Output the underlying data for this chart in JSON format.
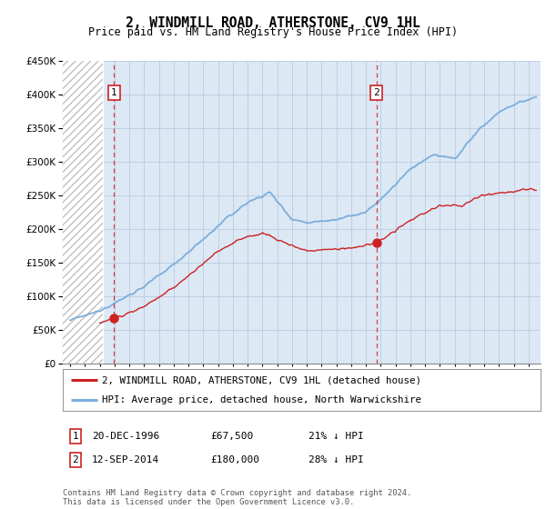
{
  "title": "2, WINDMILL ROAD, ATHERSTONE, CV9 1HL",
  "subtitle": "Price paid vs. HM Land Registry's House Price Index (HPI)",
  "ylim": [
    0,
    450000
  ],
  "xlim_start": 1993.5,
  "xlim_end": 2025.8,
  "hatch_end": 1996.2,
  "sale1_date": 1996.97,
  "sale1_price": 67500,
  "sale1_label": "1",
  "sale2_date": 2014.71,
  "sale2_price": 180000,
  "sale2_label": "2",
  "legend_line1": "2, WINDMILL ROAD, ATHERSTONE, CV9 1HL (detached house)",
  "legend_line2": "HPI: Average price, detached house, North Warwickshire",
  "footer": "Contains HM Land Registry data © Crown copyright and database right 2024.\nThis data is licensed under the Open Government Licence v3.0.",
  "hpi_color": "#7aaedc",
  "price_color": "#cc2222",
  "bg_color": "#dde8f5",
  "grid_color": "#b8cce0",
  "title_fontsize": 10.5,
  "subtitle_fontsize": 8.5,
  "tick_fontsize": 7.5,
  "annotation_fontsize": 8.0
}
